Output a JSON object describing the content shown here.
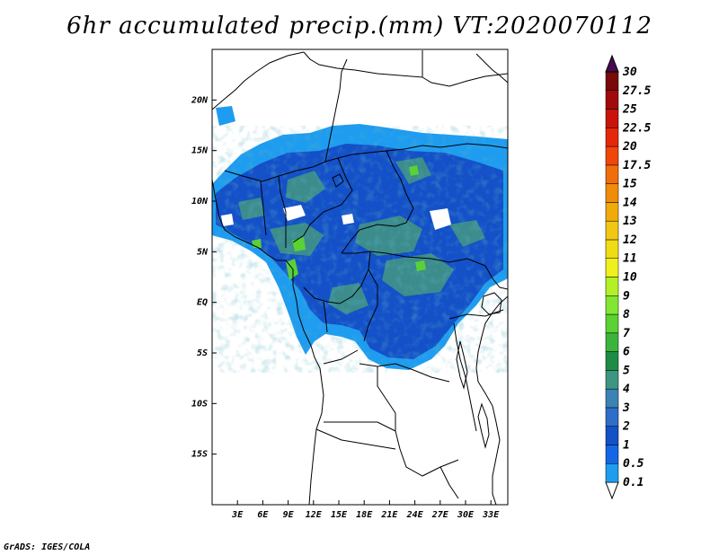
{
  "title": "6hr accumulated precip.(mm) VT:2020070112",
  "credit": "GrADS: IGES/COLA",
  "map": {
    "lon_range": [
      0,
      35
    ],
    "lat_range": [
      -20,
      25
    ],
    "lon_ticks": [
      "3E",
      "6E",
      "9E",
      "12E",
      "15E",
      "18E",
      "21E",
      "24E",
      "27E",
      "30E",
      "33E"
    ],
    "lat_ticks": [
      "20N",
      "15N",
      "10N",
      "5N",
      "EQ",
      "5S",
      "10S",
      "15S"
    ]
  },
  "colorbar": {
    "labels": [
      "0.1",
      "0.5",
      "1",
      "2",
      "3",
      "4",
      "5",
      "6",
      "7",
      "8",
      "9",
      "10",
      "11",
      "12",
      "13",
      "14",
      "15",
      "17.5",
      "20",
      "22.5",
      "25",
      "27.5",
      "30"
    ],
    "colors": [
      "#1e9cf0",
      "#1466e6",
      "#1450c8",
      "#2d6ec8",
      "#3c82b4",
      "#3c9682",
      "#1e8c46",
      "#3cb43c",
      "#5ad232",
      "#82e632",
      "#b4f028",
      "#f0f01e",
      "#f0dc14",
      "#f0c814",
      "#f0aa0a",
      "#f08c0a",
      "#f06e0a",
      "#f0460a",
      "#e6280a",
      "#c8140a",
      "#a00a0a",
      "#780a0a",
      "#5a0a28",
      "#460a50"
    ]
  }
}
